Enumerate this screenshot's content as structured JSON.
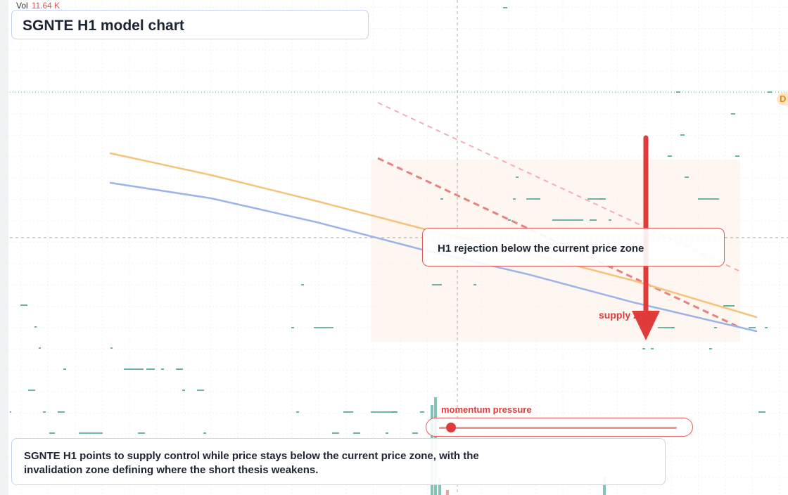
{
  "header": {
    "vol_label": "Vol",
    "vol_value": "11.64 K",
    "title": "SGNTE H1 model chart"
  },
  "callout": {
    "text": "H1 rejection below the current price zone"
  },
  "labels": {
    "supply_zone": "supply zone",
    "momentum": "momentum pressure",
    "right_edge_badge": "D"
  },
  "momentum": {
    "level": 0.05
  },
  "summary": {
    "text": "SGNTE H1 points to supply control while price stays below the current price zone, with the invalidation zone defining where the short thesis weakens."
  },
  "colors": {
    "grid": "#eaf6ee",
    "bear": "#e03b3b",
    "ma_orange": "#f7c27a",
    "ma_blue": "#9db3ee",
    "candle": "#1a8a7a",
    "volume_up": "#7fc4b6",
    "volume_down": "#f0a394",
    "zone": "#fdeee4"
  },
  "chart_data": {
    "type": "line",
    "series": [
      {
        "values": [
          [
            157,
            218
          ],
          [
            300,
            249
          ],
          [
            450,
            286
          ],
          [
            600,
            325
          ],
          [
            750,
            360
          ],
          [
            900,
            399
          ],
          [
            1075,
            451
          ]
        ]
      },
      {
        "values": [
          [
            157,
            260
          ],
          [
            300,
            282
          ],
          [
            450,
            316
          ],
          [
            600,
            355
          ],
          [
            750,
            390
          ],
          [
            900,
            430
          ],
          [
            1075,
            471
          ]
        ]
      }
    ],
    "trendlines": [
      {
        "from": [
          537,
          146
        ],
        "to": [
          1052,
          386
        ],
        "style": "dashed-light"
      },
      {
        "from": [
          537,
          225
        ],
        "to": [
          1052,
          466
        ],
        "style": "dashed-bold"
      }
    ],
    "crosshair": {
      "x": 650,
      "y": 338
    },
    "reference_level": 131,
    "arrow": {
      "x": 918,
      "from": 196,
      "to": 484
    },
    "zone": {
      "x1": 527,
      "x2": 1052,
      "y1": 227,
      "y2": 486
    },
    "candles": [
      {
        "x": 29,
        "y": 434,
        "w": 10
      },
      {
        "x": 49,
        "y": 465,
        "w": 3
      },
      {
        "x": 55,
        "y": 495,
        "w": 3
      },
      {
        "x": 157,
        "y": 495,
        "w": 3
      },
      {
        "x": 90,
        "y": 525,
        "w": 4
      },
      {
        "x": 176,
        "y": 525,
        "w": 28
      },
      {
        "x": 208,
        "y": 525,
        "w": 12
      },
      {
        "x": 229,
        "y": 525,
        "w": 4
      },
      {
        "x": 250,
        "y": 525,
        "w": 10
      },
      {
        "x": 40,
        "y": 555,
        "w": 10
      },
      {
        "x": 259,
        "y": 555,
        "w": 4
      },
      {
        "x": 280,
        "y": 555,
        "w": 10
      },
      {
        "x": 14,
        "y": 586,
        "w": 2
      },
      {
        "x": 61,
        "y": 586,
        "w": 4
      },
      {
        "x": 82,
        "y": 586,
        "w": 10
      },
      {
        "x": 421,
        "y": 586,
        "w": 4
      },
      {
        "x": 488,
        "y": 586,
        "w": 14
      },
      {
        "x": 527,
        "y": 586,
        "w": 36
      },
      {
        "x": 557,
        "y": 586,
        "w": 8
      },
      {
        "x": 597,
        "y": 586,
        "w": 6
      },
      {
        "x": 1078,
        "y": 586,
        "w": 10
      },
      {
        "x": 70,
        "y": 616,
        "w": 8
      },
      {
        "x": 112,
        "y": 616,
        "w": 34
      },
      {
        "x": 196,
        "y": 616,
        "w": 10
      },
      {
        "x": 289,
        "y": 616,
        "w": 4
      },
      {
        "x": 472,
        "y": 616,
        "w": 10
      },
      {
        "x": 502,
        "y": 616,
        "w": 10
      },
      {
        "x": 548,
        "y": 616,
        "w": 4
      },
      {
        "x": 586,
        "y": 616,
        "w": 8
      },
      {
        "x": 428,
        "y": 405,
        "w": 4
      },
      {
        "x": 614,
        "y": 405,
        "w": 14
      },
      {
        "x": 673,
        "y": 405,
        "w": 4
      },
      {
        "x": 414,
        "y": 466,
        "w": 4
      },
      {
        "x": 446,
        "y": 466,
        "w": 28
      },
      {
        "x": 626,
        "y": 283,
        "w": 4
      },
      {
        "x": 733,
        "y": 252,
        "w": 4
      },
      {
        "x": 729,
        "y": 283,
        "w": 4
      },
      {
        "x": 748,
        "y": 283,
        "w": 20
      },
      {
        "x": 722,
        "y": 313,
        "w": 4
      },
      {
        "x": 785,
        "y": 313,
        "w": 44
      },
      {
        "x": 838,
        "y": 313,
        "w": 10
      },
      {
        "x": 865,
        "y": 313,
        "w": 4
      },
      {
        "x": 835,
        "y": 283,
        "w": 20
      },
      {
        "x": 853,
        "y": 283,
        "w": 8
      },
      {
        "x": 715,
        "y": 11,
        "w": 6
      },
      {
        "x": 961,
        "y": 131,
        "w": 6
      },
      {
        "x": 1039,
        "y": 162,
        "w": 6
      },
      {
        "x": 967,
        "y": 192,
        "w": 6
      },
      {
        "x": 949,
        "y": 222,
        "w": 6
      },
      {
        "x": 1045,
        "y": 222,
        "w": 6
      },
      {
        "x": 973,
        "y": 252,
        "w": 6
      },
      {
        "x": 992,
        "y": 283,
        "w": 30
      },
      {
        "x": 1028,
        "y": 435,
        "w": 16
      },
      {
        "x": 935,
        "y": 466,
        "w": 22
      },
      {
        "x": 955,
        "y": 466,
        "w": 4
      },
      {
        "x": 1015,
        "y": 466,
        "w": 4
      },
      {
        "x": 1064,
        "y": 466,
        "w": 10
      },
      {
        "x": 1087,
        "y": 466,
        "w": 4
      },
      {
        "x": 913,
        "y": 496,
        "w": 4
      },
      {
        "x": 925,
        "y": 496,
        "w": 4
      },
      {
        "x": 1008,
        "y": 496,
        "w": 4
      },
      {
        "x": 1091,
        "y": 131,
        "w": 6
      }
    ],
    "volume": [
      {
        "x": 614,
        "top": 576,
        "bottom": 704,
        "dir": "up"
      },
      {
        "x": 619,
        "top": 565,
        "bottom": 704,
        "dir": "up"
      },
      {
        "x": 625,
        "top": 680,
        "bottom": 704,
        "dir": "up"
      },
      {
        "x": 636,
        "top": 697,
        "bottom": 704,
        "dir": "down"
      },
      {
        "x": 859,
        "top": 678,
        "bottom": 704,
        "dir": "up"
      }
    ]
  }
}
